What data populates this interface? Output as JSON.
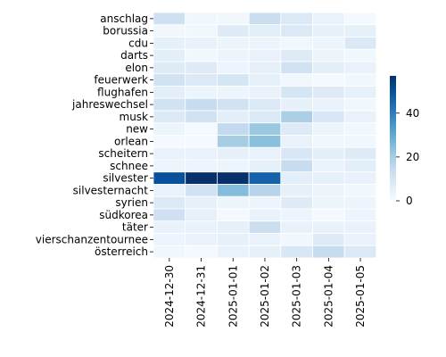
{
  "chart_data": {
    "type": "heatmap",
    "x": [
      "2024-12-30",
      "2024-12-31",
      "2025-01-01",
      "2025-01-02",
      "2025-01-03",
      "2025-01-04",
      "2025-01-05"
    ],
    "y": [
      "anschlag",
      "borussia",
      "cdu",
      "darts",
      "elon",
      "feuerwerk",
      "flughafen",
      "jahreswechsel",
      "musk",
      "new",
      "orlean",
      "scheitern",
      "schnee",
      "silvester",
      "silvesternacht",
      "syrien",
      "südkorea",
      "täter",
      "vierschanzentournee",
      "österreich"
    ],
    "values": [
      [
        12,
        2,
        2,
        13,
        8,
        4,
        1
      ],
      [
        2,
        2,
        7,
        6,
        8,
        5,
        5
      ],
      [
        5,
        4,
        3,
        3,
        2,
        3,
        8
      ],
      [
        6,
        2,
        3,
        4,
        7,
        3,
        2
      ],
      [
        7,
        7,
        3,
        5,
        11,
        6,
        4
      ],
      [
        11,
        8,
        10,
        5,
        2,
        1,
        2
      ],
      [
        6,
        3,
        3,
        4,
        10,
        7,
        5
      ],
      [
        11,
        14,
        11,
        8,
        5,
        4,
        2
      ],
      [
        8,
        11,
        6,
        8,
        19,
        9,
        4
      ],
      [
        3,
        1,
        15,
        22,
        7,
        3,
        2
      ],
      [
        1,
        1,
        20,
        24,
        4,
        2,
        2
      ],
      [
        4,
        4,
        5,
        4,
        9,
        6,
        7
      ],
      [
        3,
        3,
        3,
        5,
        14,
        4,
        6
      ],
      [
        50,
        57,
        57,
        46,
        6,
        5,
        4
      ],
      [
        4,
        11,
        25,
        17,
        5,
        3,
        2
      ],
      [
        8,
        5,
        3,
        3,
        7,
        3,
        3
      ],
      [
        12,
        5,
        1,
        4,
        3,
        1,
        3
      ],
      [
        4,
        4,
        5,
        13,
        4,
        4,
        4
      ],
      [
        3,
        4,
        5,
        4,
        2,
        7,
        4
      ],
      [
        2,
        1,
        4,
        5,
        9,
        14,
        8
      ]
    ],
    "colorbar": {
      "min": 0,
      "max": 57,
      "ticks": [
        0,
        20,
        40
      ]
    },
    "colormap": {
      "low": "#f7fbff",
      "high": "#08306b"
    },
    "grid": false
  }
}
